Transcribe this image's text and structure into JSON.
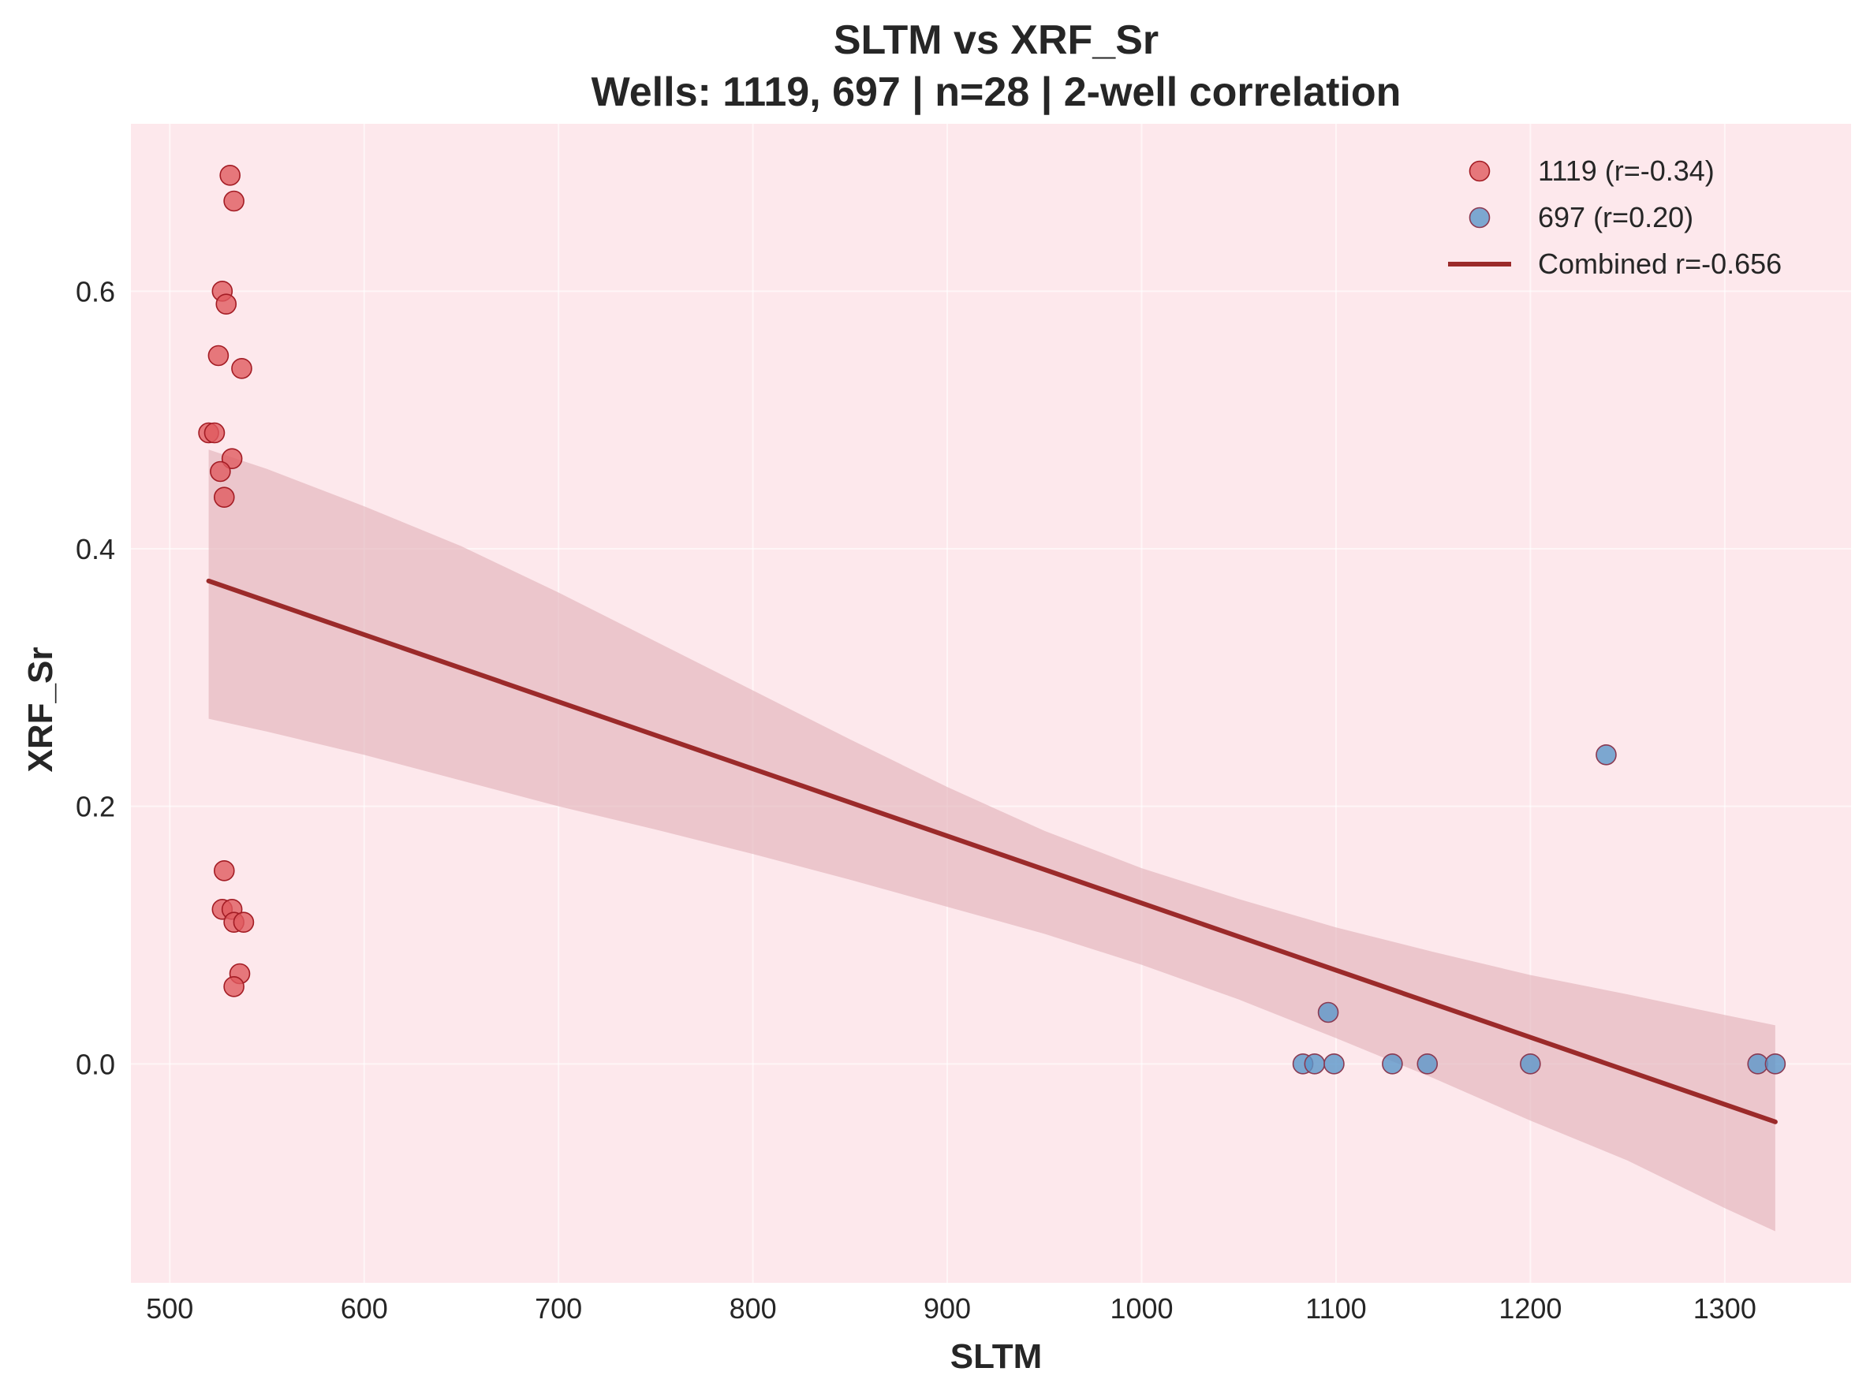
{
  "chart_data": {
    "type": "scatter",
    "title": "SLTM vs XRF_Sr",
    "subtitle": "Wells: 1119, 697 | n=28 | 2-well correlation",
    "xlabel": "SLTM",
    "ylabel": "XRF_Sr",
    "xlim": [
      480,
      1365
    ],
    "ylim": [
      -0.17,
      0.73
    ],
    "xticks": [
      500,
      600,
      700,
      800,
      900,
      1000,
      1100,
      1200,
      1300
    ],
    "xtick_labels": [
      "500",
      "600",
      "700",
      "800",
      "900",
      "1000",
      "1100",
      "1200",
      "1300"
    ],
    "yticks": [
      0.0,
      0.2,
      0.4,
      0.6
    ],
    "ytick_labels": [
      "0.0",
      "0.2",
      "0.4",
      "0.6"
    ],
    "grid": true,
    "legend_position": "top-right",
    "background_color": "#fde8ec",
    "series": [
      {
        "name": "1119 (r=-0.34)",
        "color": "#e05a5f",
        "edge_color": "#a31c24",
        "points": [
          {
            "x": 531,
            "y": 0.69
          },
          {
            "x": 533,
            "y": 0.67
          },
          {
            "x": 527,
            "y": 0.6
          },
          {
            "x": 529,
            "y": 0.59
          },
          {
            "x": 525,
            "y": 0.55
          },
          {
            "x": 537,
            "y": 0.54
          },
          {
            "x": 520,
            "y": 0.49
          },
          {
            "x": 523,
            "y": 0.49
          },
          {
            "x": 532,
            "y": 0.47
          },
          {
            "x": 526,
            "y": 0.46
          },
          {
            "x": 528,
            "y": 0.44
          },
          {
            "x": 528,
            "y": 0.15
          },
          {
            "x": 527,
            "y": 0.12
          },
          {
            "x": 532,
            "y": 0.12
          },
          {
            "x": 533,
            "y": 0.11
          },
          {
            "x": 538,
            "y": 0.11
          },
          {
            "x": 536,
            "y": 0.07
          },
          {
            "x": 533,
            "y": 0.06
          }
        ]
      },
      {
        "name": "697 (r=0.20)",
        "color": "#5b96c9",
        "edge_color": "#8a3a52",
        "points": [
          {
            "x": 1239,
            "y": 0.24
          },
          {
            "x": 1096,
            "y": 0.04
          },
          {
            "x": 1083,
            "y": 0.0
          },
          {
            "x": 1089,
            "y": 0.0
          },
          {
            "x": 1099,
            "y": 0.0
          },
          {
            "x": 1129,
            "y": 0.0
          },
          {
            "x": 1147,
            "y": 0.0
          },
          {
            "x": 1200,
            "y": 0.0
          },
          {
            "x": 1317,
            "y": 0.0
          },
          {
            "x": 1326,
            "y": 0.0
          }
        ]
      }
    ],
    "regression": {
      "name": "Combined r=-0.656",
      "color": "#9b2a2a",
      "x": [
        520,
        1326
      ],
      "y": [
        0.375,
        -0.045
      ],
      "band_color": "#e3b4bb",
      "band": [
        {
          "x": 520,
          "lo": 0.268,
          "hi": 0.477
        },
        {
          "x": 550,
          "lo": 0.258,
          "hi": 0.462
        },
        {
          "x": 600,
          "lo": 0.24,
          "hi": 0.433
        },
        {
          "x": 650,
          "lo": 0.22,
          "hi": 0.402
        },
        {
          "x": 700,
          "lo": 0.2,
          "hi": 0.366
        },
        {
          "x": 750,
          "lo": 0.182,
          "hi": 0.328
        },
        {
          "x": 800,
          "lo": 0.163,
          "hi": 0.29
        },
        {
          "x": 850,
          "lo": 0.143,
          "hi": 0.252
        },
        {
          "x": 900,
          "lo": 0.122,
          "hi": 0.215
        },
        {
          "x": 950,
          "lo": 0.101,
          "hi": 0.181
        },
        {
          "x": 1000,
          "lo": 0.077,
          "hi": 0.152
        },
        {
          "x": 1050,
          "lo": 0.05,
          "hi": 0.128
        },
        {
          "x": 1100,
          "lo": 0.02,
          "hi": 0.106
        },
        {
          "x": 1150,
          "lo": -0.011,
          "hi": 0.087
        },
        {
          "x": 1200,
          "lo": -0.044,
          "hi": 0.069
        },
        {
          "x": 1250,
          "lo": -0.075,
          "hi": 0.054
        },
        {
          "x": 1300,
          "lo": -0.112,
          "hi": 0.038
        },
        {
          "x": 1326,
          "lo": -0.13,
          "hi": 0.03
        }
      ]
    }
  }
}
